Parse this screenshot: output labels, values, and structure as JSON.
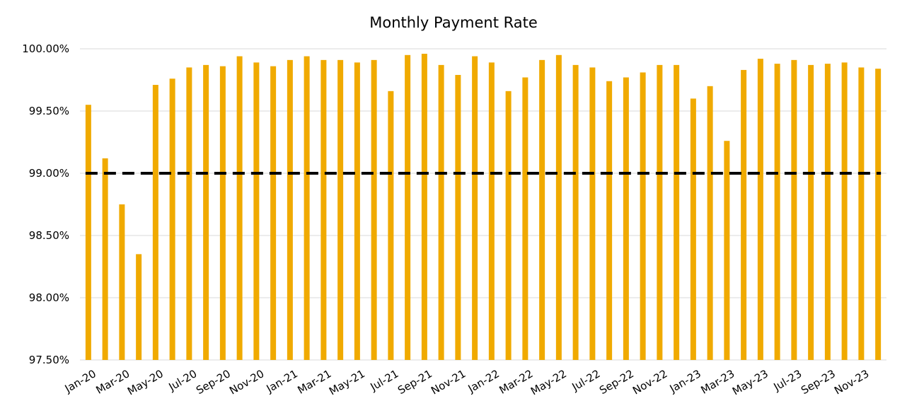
{
  "chart_data": {
    "type": "bar",
    "title": "Monthly Payment Rate",
    "xlabel": "",
    "ylabel": "",
    "ylim": [
      97.5,
      100.0
    ],
    "y_tick_labels": [
      "97.50%",
      "98.00%",
      "98.50%",
      "99.00%",
      "99.50%",
      "100.00%"
    ],
    "y_ticks": [
      97.5,
      98.0,
      98.5,
      99.0,
      99.5,
      100.0
    ],
    "grid": "horizontal",
    "bar_color": "#F0AA00",
    "reference_line": {
      "value": 99.0,
      "style": "dashed",
      "color": "#000000"
    },
    "categories": [
      "Jan-20",
      "Feb-20",
      "Mar-20",
      "Apr-20",
      "May-20",
      "Jun-20",
      "Jul-20",
      "Aug-20",
      "Sep-20",
      "Oct-20",
      "Nov-20",
      "Dec-20",
      "Jan-21",
      "Feb-21",
      "Mar-21",
      "Apr-21",
      "May-21",
      "Jun-21",
      "Jul-21",
      "Aug-21",
      "Sep-21",
      "Oct-21",
      "Nov-21",
      "Dec-21",
      "Jan-22",
      "Feb-22",
      "Mar-22",
      "Apr-22",
      "May-22",
      "Jun-22",
      "Jul-22",
      "Aug-22",
      "Sep-22",
      "Oct-22",
      "Nov-22",
      "Dec-22",
      "Jan-23",
      "Feb-23",
      "Mar-23",
      "Apr-23",
      "May-23",
      "Jun-23",
      "Jul-23",
      "Aug-23",
      "Sep-23",
      "Oct-23",
      "Nov-23",
      "Dec-23"
    ],
    "x_tick_labels": [
      "Jan-20",
      "Mar-20",
      "May-20",
      "Jul-20",
      "Sep-20",
      "Nov-20",
      "Jan-21",
      "Mar-21",
      "May-21",
      "Jul-21",
      "Sep-21",
      "Nov-21",
      "Jan-22",
      "Mar-22",
      "May-22",
      "Jul-22",
      "Sep-22",
      "Nov-22",
      "Jan-23",
      "Mar-23",
      "May-23",
      "Jul-23",
      "Sep-23",
      "Nov-23"
    ],
    "values": [
      99.55,
      99.12,
      98.75,
      98.35,
      99.71,
      99.76,
      99.85,
      99.87,
      99.86,
      99.94,
      99.89,
      99.86,
      99.91,
      99.94,
      99.91,
      99.91,
      99.89,
      99.91,
      99.66,
      99.95,
      99.96,
      99.87,
      99.79,
      99.94,
      99.89,
      99.66,
      99.77,
      99.91,
      99.95,
      99.87,
      99.85,
      99.74,
      99.77,
      99.81,
      99.87,
      99.87,
      99.6,
      99.7,
      99.26,
      99.83,
      99.92,
      99.88,
      99.91,
      99.87,
      99.88,
      99.89,
      99.85,
      99.84
    ]
  }
}
